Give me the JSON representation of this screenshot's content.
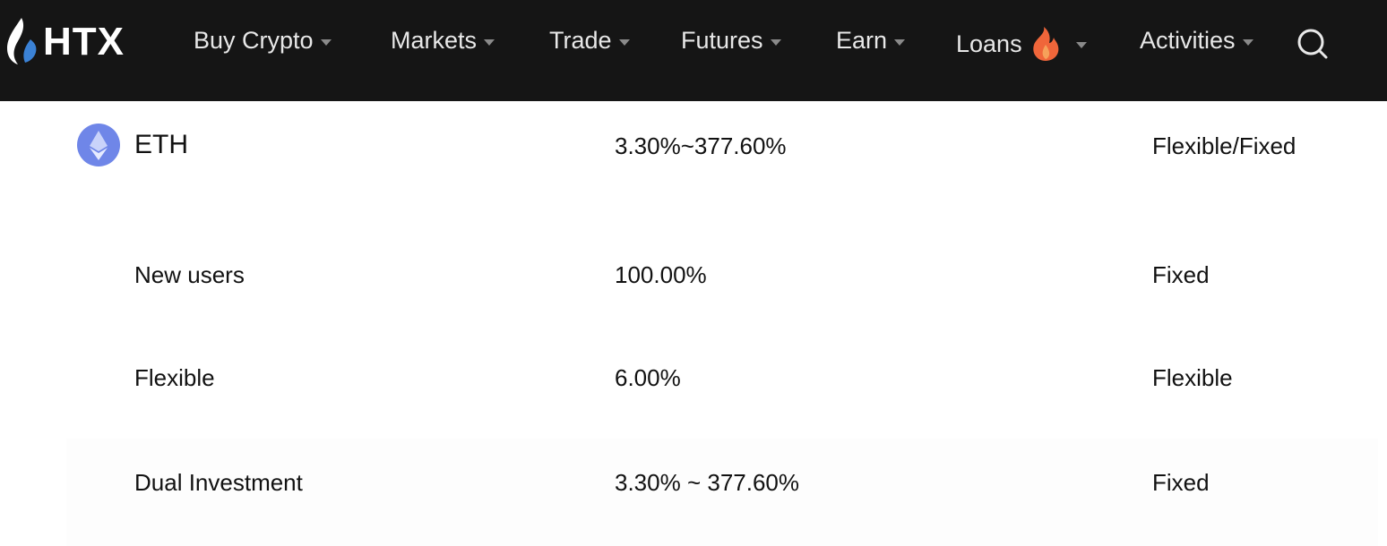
{
  "header": {
    "logo_text": "HTX",
    "nav": [
      {
        "label": "Buy Crypto",
        "has_dropdown": true
      },
      {
        "label": "Markets",
        "has_dropdown": true
      },
      {
        "label": "Trade",
        "has_dropdown": true
      },
      {
        "label": "Futures",
        "has_dropdown": true
      },
      {
        "label": "Earn",
        "has_dropdown": true
      },
      {
        "label": "Loans",
        "has_dropdown": true,
        "icon": "fire-icon"
      },
      {
        "label": "Activities",
        "has_dropdown": true
      }
    ],
    "search_icon": "search-icon"
  },
  "table": {
    "coin": {
      "name": "ETH",
      "icon": "ethereum-icon",
      "icon_color": "#6f86e8",
      "apr": "3.30%~377.60%",
      "type": "Flexible/Fixed"
    },
    "rows": [
      {
        "product": "New users",
        "apr": "100.00%",
        "type": "Fixed"
      },
      {
        "product": "Flexible",
        "apr": "6.00%",
        "type": "Flexible"
      },
      {
        "product": "Dual Investment",
        "apr": "3.30% ~ 377.60%",
        "type": "Fixed"
      }
    ]
  },
  "colors": {
    "header_bg": "#151515",
    "logo_blue": "#3b82d6",
    "fire": "#f0663a"
  }
}
